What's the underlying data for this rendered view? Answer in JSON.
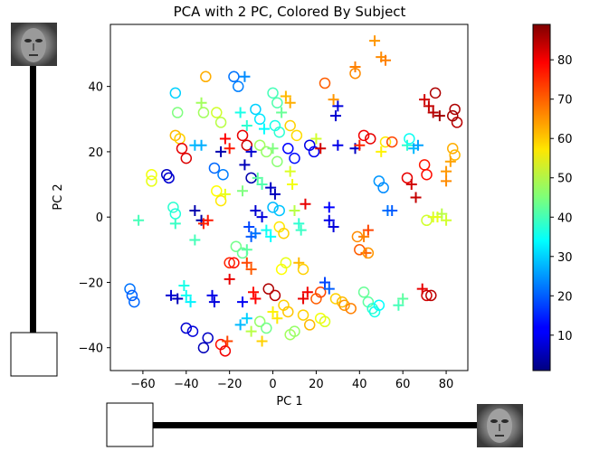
{
  "chart_data": {
    "type": "scatter",
    "title": "PCA with 2 PC, Colored By Subject",
    "xlabel": "PC 1",
    "ylabel": "PC 2",
    "xlim": [
      -75,
      90
    ],
    "ylim": [
      -47,
      59
    ],
    "xticks": [
      -60,
      -40,
      -20,
      0,
      20,
      40,
      60,
      80
    ],
    "yticks": [
      -40,
      -20,
      0,
      20,
      40
    ],
    "grid": false,
    "colorbar": {
      "colormap": "jet",
      "range": [
        1,
        89
      ],
      "ticks": [
        10,
        20,
        30,
        40,
        50,
        60,
        70,
        80
      ],
      "placement": "right"
    },
    "markers": [
      "circle",
      "plus"
    ],
    "points": [
      {
        "x": -66,
        "y": -22,
        "s": 22,
        "m": "o"
      },
      {
        "x": -65,
        "y": -24,
        "s": 20,
        "m": "o"
      },
      {
        "x": -64,
        "y": -26,
        "s": 21,
        "m": "o"
      },
      {
        "x": -62,
        "y": -1,
        "s": 40,
        "m": "+"
      },
      {
        "x": -56,
        "y": 13,
        "s": 55,
        "m": "o"
      },
      {
        "x": -56,
        "y": 11,
        "s": 54,
        "m": "o"
      },
      {
        "x": -49,
        "y": 13,
        "s": 7,
        "m": "o"
      },
      {
        "x": -48,
        "y": 12,
        "s": 8,
        "m": "o"
      },
      {
        "x": -47,
        "y": -24,
        "s": 8,
        "m": "+"
      },
      {
        "x": -44,
        "y": -25,
        "s": 6,
        "m": "+"
      },
      {
        "x": -46,
        "y": 3,
        "s": 38,
        "m": "o"
      },
      {
        "x": -45,
        "y": 1,
        "s": 37,
        "m": "o"
      },
      {
        "x": -45,
        "y": -2,
        "s": 39,
        "m": "+"
      },
      {
        "x": -45,
        "y": 25,
        "s": 62,
        "m": "o"
      },
      {
        "x": -43,
        "y": 24,
        "s": 60,
        "m": "o"
      },
      {
        "x": -42,
        "y": 21,
        "s": 80,
        "m": "o"
      },
      {
        "x": -40,
        "y": 18,
        "s": 81,
        "m": "o"
      },
      {
        "x": -41,
        "y": -21,
        "s": 36,
        "m": "+"
      },
      {
        "x": -40,
        "y": -24,
        "s": 35,
        "m": "+"
      },
      {
        "x": -38,
        "y": -26,
        "s": 33,
        "m": "+"
      },
      {
        "x": -40,
        "y": -34,
        "s": 8,
        "m": "o"
      },
      {
        "x": -37,
        "y": -35,
        "s": 9,
        "m": "o"
      },
      {
        "x": -36,
        "y": 22,
        "s": 28,
        "m": "+"
      },
      {
        "x": -33,
        "y": 22,
        "s": 27,
        "m": "+"
      },
      {
        "x": -32,
        "y": 32,
        "s": 48,
        "m": "o"
      },
      {
        "x": -33,
        "y": 35,
        "s": 48,
        "m": "+"
      },
      {
        "x": -31,
        "y": 43,
        "s": 63,
        "m": "o"
      },
      {
        "x": -45,
        "y": 38,
        "s": 30,
        "m": "o"
      },
      {
        "x": -44,
        "y": 32,
        "s": 45,
        "m": "o"
      },
      {
        "x": -36,
        "y": 2,
        "s": 5,
        "m": "+"
      },
      {
        "x": -33,
        "y": -1,
        "s": 4,
        "m": "+"
      },
      {
        "x": -32,
        "y": -2,
        "s": 75,
        "m": "+"
      },
      {
        "x": -30,
        "y": -1,
        "s": 76,
        "m": "+"
      },
      {
        "x": -36,
        "y": -7,
        "s": 40,
        "m": "+"
      },
      {
        "x": -32,
        "y": -40,
        "s": 6,
        "m": "o"
      },
      {
        "x": -30,
        "y": -37,
        "s": 7,
        "m": "o"
      },
      {
        "x": -28,
        "y": -24,
        "s": 10,
        "m": "+"
      },
      {
        "x": -27,
        "y": -26,
        "s": 9,
        "m": "+"
      },
      {
        "x": -24,
        "y": -39,
        "s": 77,
        "m": "o"
      },
      {
        "x": -22,
        "y": -41,
        "s": 79,
        "m": "o"
      },
      {
        "x": -21,
        "y": -38,
        "s": 72,
        "m": "+"
      },
      {
        "x": -26,
        "y": 32,
        "s": 52,
        "m": "o"
      },
      {
        "x": -24,
        "y": 29,
        "s": 50,
        "m": "o"
      },
      {
        "x": -22,
        "y": 24,
        "s": 78,
        "m": "+"
      },
      {
        "x": -20,
        "y": 21,
        "s": 76,
        "m": "+"
      },
      {
        "x": -24,
        "y": 20,
        "s": 5,
        "m": "+"
      },
      {
        "x": -27,
        "y": 15,
        "s": 21,
        "m": "o"
      },
      {
        "x": -23,
        "y": 13,
        "s": 23,
        "m": "o"
      },
      {
        "x": -26,
        "y": 8,
        "s": 56,
        "m": "o"
      },
      {
        "x": -24,
        "y": 5,
        "s": 58,
        "m": "o"
      },
      {
        "x": -22,
        "y": 7,
        "s": 54,
        "m": "+"
      },
      {
        "x": -20,
        "y": -14,
        "s": 75,
        "m": "o"
      },
      {
        "x": -18,
        "y": -14,
        "s": 77,
        "m": "o"
      },
      {
        "x": -20,
        "y": -19,
        "s": 80,
        "m": "+"
      },
      {
        "x": -17,
        "y": -9,
        "s": 44,
        "m": "o"
      },
      {
        "x": -14,
        "y": -11,
        "s": 43,
        "m": "o"
      },
      {
        "x": -12,
        "y": -10,
        "s": 42,
        "m": "+"
      },
      {
        "x": -18,
        "y": 43,
        "s": 22,
        "m": "o"
      },
      {
        "x": -16,
        "y": 40,
        "s": 23,
        "m": "o"
      },
      {
        "x": -13,
        "y": 43,
        "s": 24,
        "m": "+"
      },
      {
        "x": -15,
        "y": 32,
        "s": 36,
        "m": "+"
      },
      {
        "x": -12,
        "y": 28,
        "s": 38,
        "m": "+"
      },
      {
        "x": -14,
        "y": 25,
        "s": 80,
        "m": "o"
      },
      {
        "x": -12,
        "y": 22,
        "s": 82,
        "m": "o"
      },
      {
        "x": -10,
        "y": 20,
        "s": 8,
        "m": "+"
      },
      {
        "x": -13,
        "y": 16,
        "s": 6,
        "m": "+"
      },
      {
        "x": -10,
        "y": 12,
        "s": 5,
        "m": "o"
      },
      {
        "x": -14,
        "y": 8,
        "s": 45,
        "m": "+"
      },
      {
        "x": -11,
        "y": -3,
        "s": 18,
        "m": "+"
      },
      {
        "x": -10,
        "y": -6,
        "s": 20,
        "m": "+"
      },
      {
        "x": -8,
        "y": -5,
        "s": 22,
        "m": "+"
      },
      {
        "x": -12,
        "y": -14,
        "s": 72,
        "m": "+"
      },
      {
        "x": -10,
        "y": -16,
        "s": 70,
        "m": "+"
      },
      {
        "x": -14,
        "y": -26,
        "s": 11,
        "m": "+"
      },
      {
        "x": -9,
        "y": -23,
        "s": 77,
        "m": "+"
      },
      {
        "x": -8,
        "y": -25,
        "s": 78,
        "m": "+"
      },
      {
        "x": -15,
        "y": -33,
        "s": 28,
        "m": "+"
      },
      {
        "x": -12,
        "y": -31,
        "s": 30,
        "m": "+"
      },
      {
        "x": -10,
        "y": -35,
        "s": 50,
        "m": "+"
      },
      {
        "x": -6,
        "y": -32,
        "s": 47,
        "m": "o"
      },
      {
        "x": -3,
        "y": -34,
        "s": 44,
        "m": "o"
      },
      {
        "x": -5,
        "y": -38,
        "s": 60,
        "m": "+"
      },
      {
        "x": -8,
        "y": 33,
        "s": 30,
        "m": "o"
      },
      {
        "x": -6,
        "y": 30,
        "s": 32,
        "m": "o"
      },
      {
        "x": -4,
        "y": 27,
        "s": 34,
        "m": "+"
      },
      {
        "x": -6,
        "y": 22,
        "s": 48,
        "m": "o"
      },
      {
        "x": -3,
        "y": 20,
        "s": 47,
        "m": "o"
      },
      {
        "x": -7,
        "y": 12,
        "s": 42,
        "m": "+"
      },
      {
        "x": -5,
        "y": 10,
        "s": 41,
        "m": "+"
      },
      {
        "x": -8,
        "y": 2,
        "s": 8,
        "m": "+"
      },
      {
        "x": -5,
        "y": 0,
        "s": 9,
        "m": "+"
      },
      {
        "x": -3,
        "y": -4,
        "s": 35,
        "m": "+"
      },
      {
        "x": -1,
        "y": -6,
        "s": 34,
        "m": "+"
      },
      {
        "x": -2,
        "y": -22,
        "s": 85,
        "m": "o"
      },
      {
        "x": 1,
        "y": -24,
        "s": 84,
        "m": "o"
      },
      {
        "x": 0,
        "y": -29,
        "s": 57,
        "m": "+"
      },
      {
        "x": 2,
        "y": -31,
        "s": 58,
        "m": "+"
      },
      {
        "x": 0,
        "y": 38,
        "s": 40,
        "m": "o"
      },
      {
        "x": 2,
        "y": 35,
        "s": 41,
        "m": "o"
      },
      {
        "x": 4,
        "y": 32,
        "s": 43,
        "m": "+"
      },
      {
        "x": 1,
        "y": 28,
        "s": 36,
        "m": "o"
      },
      {
        "x": 3,
        "y": 26,
        "s": 38,
        "m": "o"
      },
      {
        "x": 0,
        "y": 21,
        "s": 45,
        "m": "+"
      },
      {
        "x": 2,
        "y": 17,
        "s": 46,
        "m": "o"
      },
      {
        "x": -1,
        "y": 9,
        "s": 7,
        "m": "+"
      },
      {
        "x": 1,
        "y": 7,
        "s": 6,
        "m": "+"
      },
      {
        "x": 0,
        "y": 3,
        "s": 28,
        "m": "o"
      },
      {
        "x": 3,
        "y": 2,
        "s": 29,
        "m": "o"
      },
      {
        "x": 3,
        "y": -3,
        "s": 58,
        "m": "o"
      },
      {
        "x": 5,
        "y": -5,
        "s": 60,
        "m": "o"
      },
      {
        "x": 4,
        "y": -16,
        "s": 56,
        "m": "o"
      },
      {
        "x": 6,
        "y": -14,
        "s": 54,
        "m": "o"
      },
      {
        "x": 5,
        "y": -27,
        "s": 60,
        "m": "o"
      },
      {
        "x": 7,
        "y": -29,
        "s": 61,
        "m": "o"
      },
      {
        "x": 8,
        "y": -36,
        "s": 48,
        "m": "o"
      },
      {
        "x": 10,
        "y": -35,
        "s": 47,
        "m": "o"
      },
      {
        "x": 6,
        "y": 37,
        "s": 62,
        "m": "+"
      },
      {
        "x": 8,
        "y": 35,
        "s": 63,
        "m": "+"
      },
      {
        "x": 8,
        "y": 28,
        "s": 60,
        "m": "o"
      },
      {
        "x": 11,
        "y": 25,
        "s": 59,
        "m": "o"
      },
      {
        "x": 7,
        "y": 21,
        "s": 12,
        "m": "o"
      },
      {
        "x": 10,
        "y": 18,
        "s": 13,
        "m": "o"
      },
      {
        "x": 8,
        "y": 14,
        "s": 53,
        "m": "+"
      },
      {
        "x": 9,
        "y": 10,
        "s": 55,
        "m": "+"
      },
      {
        "x": 10,
        "y": 2,
        "s": 50,
        "m": "+"
      },
      {
        "x": 12,
        "y": -2,
        "s": 38,
        "m": "+"
      },
      {
        "x": 13,
        "y": -4,
        "s": 39,
        "m": "+"
      },
      {
        "x": 12,
        "y": -14,
        "s": 62,
        "m": "+"
      },
      {
        "x": 14,
        "y": -16,
        "s": 60,
        "m": "o"
      },
      {
        "x": 14,
        "y": -25,
        "s": 80,
        "m": "+"
      },
      {
        "x": 16,
        "y": -23,
        "s": 79,
        "m": "+"
      },
      {
        "x": 14,
        "y": -30,
        "s": 60,
        "m": "o"
      },
      {
        "x": 17,
        "y": -33,
        "s": 62,
        "m": "o"
      },
      {
        "x": 15,
        "y": 4,
        "s": 80,
        "m": "+"
      },
      {
        "x": 17,
        "y": 22,
        "s": 10,
        "m": "o"
      },
      {
        "x": 19,
        "y": 20,
        "s": 11,
        "m": "o"
      },
      {
        "x": 20,
        "y": 24,
        "s": 52,
        "m": "+"
      },
      {
        "x": 22,
        "y": 21,
        "s": 82,
        "m": "+"
      },
      {
        "x": 24,
        "y": 41,
        "s": 70,
        "m": "o"
      },
      {
        "x": 20,
        "y": -25,
        "s": 70,
        "m": "o"
      },
      {
        "x": 22,
        "y": -23,
        "s": 72,
        "m": "o"
      },
      {
        "x": 22,
        "y": -31,
        "s": 55,
        "m": "o"
      },
      {
        "x": 24,
        "y": -32,
        "s": 53,
        "m": "o"
      },
      {
        "x": 24,
        "y": -20,
        "s": 18,
        "m": "+"
      },
      {
        "x": 26,
        "y": -22,
        "s": 20,
        "m": "+"
      },
      {
        "x": 26,
        "y": -1,
        "s": 10,
        "m": "+"
      },
      {
        "x": 28,
        "y": -3,
        "s": 9,
        "m": "+"
      },
      {
        "x": 26,
        "y": 3,
        "s": 12,
        "m": "+"
      },
      {
        "x": 28,
        "y": 36,
        "s": 65,
        "m": "+"
      },
      {
        "x": 30,
        "y": 34,
        "s": 9,
        "m": "+"
      },
      {
        "x": 29,
        "y": 31,
        "s": 8,
        "m": "+"
      },
      {
        "x": 30,
        "y": 22,
        "s": 10,
        "m": "+"
      },
      {
        "x": 29,
        "y": -25,
        "s": 60,
        "m": "o"
      },
      {
        "x": 32,
        "y": -26,
        "s": 62,
        "m": "o"
      },
      {
        "x": 33,
        "y": -27,
        "s": 65,
        "m": "o"
      },
      {
        "x": 36,
        "y": -28,
        "s": 67,
        "m": "o"
      },
      {
        "x": 38,
        "y": 44,
        "s": 66,
        "m": "o"
      },
      {
        "x": 38,
        "y": 46,
        "s": 67,
        "m": "+"
      },
      {
        "x": 38,
        "y": 21,
        "s": 7,
        "m": "+"
      },
      {
        "x": 40,
        "y": 22,
        "s": 75,
        "m": "+"
      },
      {
        "x": 39,
        "y": -6,
        "s": 66,
        "m": "o"
      },
      {
        "x": 42,
        "y": -6,
        "s": 67,
        "m": "+"
      },
      {
        "x": 43,
        "y": -11,
        "s": 69,
        "m": "+"
      },
      {
        "x": 40,
        "y": -10,
        "s": 70,
        "m": "o"
      },
      {
        "x": 44,
        "y": -11,
        "s": 65,
        "m": "o"
      },
      {
        "x": 44,
        "y": -4,
        "s": 72,
        "m": "+"
      },
      {
        "x": 42,
        "y": 25,
        "s": 79,
        "m": "o"
      },
      {
        "x": 45,
        "y": 24,
        "s": 80,
        "m": "o"
      },
      {
        "x": 42,
        "y": -23,
        "s": 43,
        "m": "o"
      },
      {
        "x": 44,
        "y": -26,
        "s": 42,
        "m": "o"
      },
      {
        "x": 46,
        "y": -28,
        "s": 38,
        "m": "o"
      },
      {
        "x": 47,
        "y": -29,
        "s": 36,
        "m": "o"
      },
      {
        "x": 49,
        "y": -27,
        "s": 34,
        "m": "o"
      },
      {
        "x": 47,
        "y": 54,
        "s": 65,
        "m": "+"
      },
      {
        "x": 50,
        "y": 49,
        "s": 66,
        "m": "+"
      },
      {
        "x": 52,
        "y": 48,
        "s": 67,
        "m": "+"
      },
      {
        "x": 49,
        "y": 11,
        "s": 25,
        "m": "o"
      },
      {
        "x": 51,
        "y": 9,
        "s": 24,
        "m": "o"
      },
      {
        "x": 53,
        "y": 2,
        "s": 22,
        "m": "+"
      },
      {
        "x": 55,
        "y": 2,
        "s": 20,
        "m": "+"
      },
      {
        "x": 50,
        "y": 20,
        "s": 57,
        "m": "+"
      },
      {
        "x": 52,
        "y": 23,
        "s": 58,
        "m": "o"
      },
      {
        "x": 55,
        "y": 23,
        "s": 72,
        "m": "o"
      },
      {
        "x": 58,
        "y": -27,
        "s": 40,
        "m": "+"
      },
      {
        "x": 60,
        "y": -25,
        "s": 42,
        "m": "+"
      },
      {
        "x": 62,
        "y": 22,
        "s": 38,
        "m": "+"
      },
      {
        "x": 63,
        "y": 24,
        "s": 35,
        "m": "o"
      },
      {
        "x": 65,
        "y": 21,
        "s": 28,
        "m": "+"
      },
      {
        "x": 67,
        "y": 22,
        "s": 26,
        "m": "+"
      },
      {
        "x": 62,
        "y": 12,
        "s": 80,
        "m": "o"
      },
      {
        "x": 64,
        "y": 10,
        "s": 82,
        "m": "+"
      },
      {
        "x": 66,
        "y": 6,
        "s": 83,
        "m": "+"
      },
      {
        "x": 69,
        "y": -22,
        "s": 80,
        "m": "+"
      },
      {
        "x": 71,
        "y": -24,
        "s": 82,
        "m": "o"
      },
      {
        "x": 73,
        "y": -24,
        "s": 84,
        "m": "o"
      },
      {
        "x": 70,
        "y": 36,
        "s": 82,
        "m": "+"
      },
      {
        "x": 72,
        "y": 34,
        "s": 83,
        "m": "+"
      },
      {
        "x": 74,
        "y": 32,
        "s": 84,
        "m": "+"
      },
      {
        "x": 75,
        "y": 38,
        "s": 85,
        "m": "o"
      },
      {
        "x": 77,
        "y": 31,
        "s": 86,
        "m": "+"
      },
      {
        "x": 70,
        "y": 16,
        "s": 76,
        "m": "o"
      },
      {
        "x": 71,
        "y": 13,
        "s": 77,
        "m": "o"
      },
      {
        "x": 71,
        "y": -1,
        "s": 52,
        "m": "o"
      },
      {
        "x": 74,
        "y": 0,
        "s": 53,
        "m": "+"
      },
      {
        "x": 76,
        "y": 0,
        "s": 54,
        "m": "+"
      },
      {
        "x": 78,
        "y": 1,
        "s": 50,
        "m": "+"
      },
      {
        "x": 80,
        "y": -1,
        "s": 52,
        "m": "+"
      },
      {
        "x": 84,
        "y": 33,
        "s": 85,
        "m": "o"
      },
      {
        "x": 85,
        "y": 29,
        "s": 84,
        "m": "o"
      },
      {
        "x": 83,
        "y": 31,
        "s": 86,
        "m": "o"
      },
      {
        "x": 83,
        "y": 21,
        "s": 63,
        "m": "o"
      },
      {
        "x": 84,
        "y": 19,
        "s": 62,
        "m": "o"
      },
      {
        "x": 82,
        "y": 17,
        "s": 64,
        "m": "+"
      },
      {
        "x": 80,
        "y": 14,
        "s": 65,
        "m": "+"
      },
      {
        "x": 80,
        "y": 11,
        "s": 66,
        "m": "+"
      }
    ]
  },
  "widgets": {
    "vertical_slider": {
      "value": 0.0,
      "face_icon": "face-thumbnail-icon"
    },
    "horizontal_slider": {
      "value": 0.0,
      "face_icon": "face-thumbnail-icon"
    }
  }
}
